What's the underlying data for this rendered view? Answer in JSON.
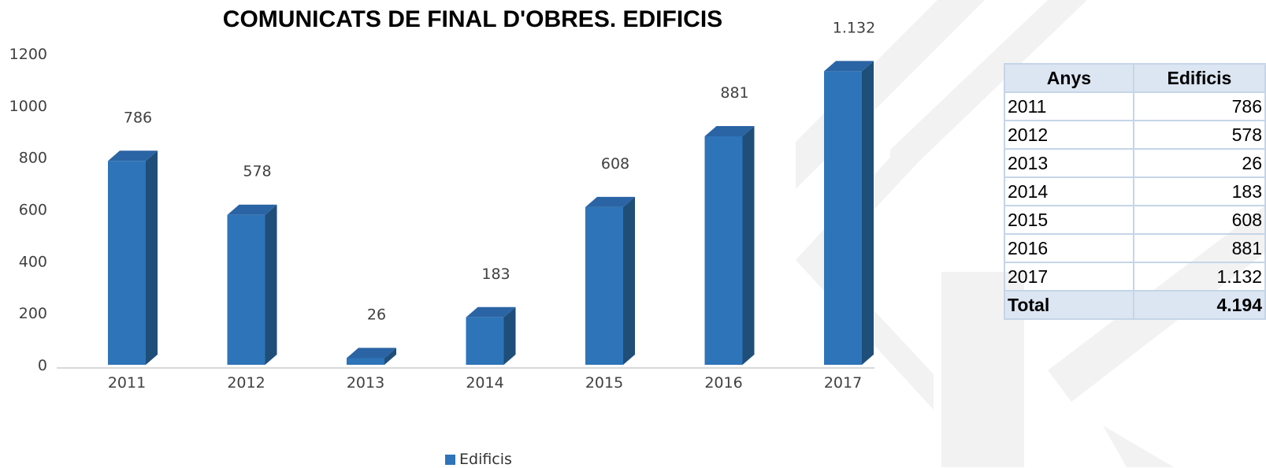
{
  "chart_data": {
    "type": "bar",
    "title": "COMUNICATS DE FINAL D'OBRES. EDIFICIS",
    "categories": [
      "2011",
      "2012",
      "2013",
      "2014",
      "2015",
      "2016",
      "2017"
    ],
    "series": [
      {
        "name": "Edificis",
        "values": [
          786,
          578,
          26,
          183,
          608,
          881,
          1132
        ]
      }
    ],
    "data_labels": [
      "786",
      "578",
      "26",
      "183",
      "608",
      "881",
      "1.132"
    ],
    "y_ticks": [
      "0",
      "200",
      "400",
      "600",
      "800",
      "1000",
      "1200"
    ],
    "ylim": [
      0,
      1200
    ],
    "grid": false,
    "legend_position": "bottom",
    "bar_style": "3d-column",
    "colors": {
      "bar_front": "#2e74b8",
      "bar_side": "#1f4e79",
      "bar_top": "#2a64a4",
      "axis": "#d9d9d9",
      "label": "#404040"
    }
  },
  "table": {
    "headers": [
      "Anys",
      "Edificis"
    ],
    "rows": [
      [
        "2011",
        "786"
      ],
      [
        "2012",
        "578"
      ],
      [
        "2013",
        "26"
      ],
      [
        "2014",
        "183"
      ],
      [
        "2015",
        "608"
      ],
      [
        "2016",
        "881"
      ],
      [
        "2017",
        "1.132"
      ]
    ],
    "total": [
      "Total",
      "4.194"
    ],
    "colors": {
      "header_bg": "#dce6f2",
      "border": "#c5d5e8"
    }
  },
  "watermark": {
    "icon": "logo-watermark-icon",
    "color": "#f0f0f0"
  }
}
